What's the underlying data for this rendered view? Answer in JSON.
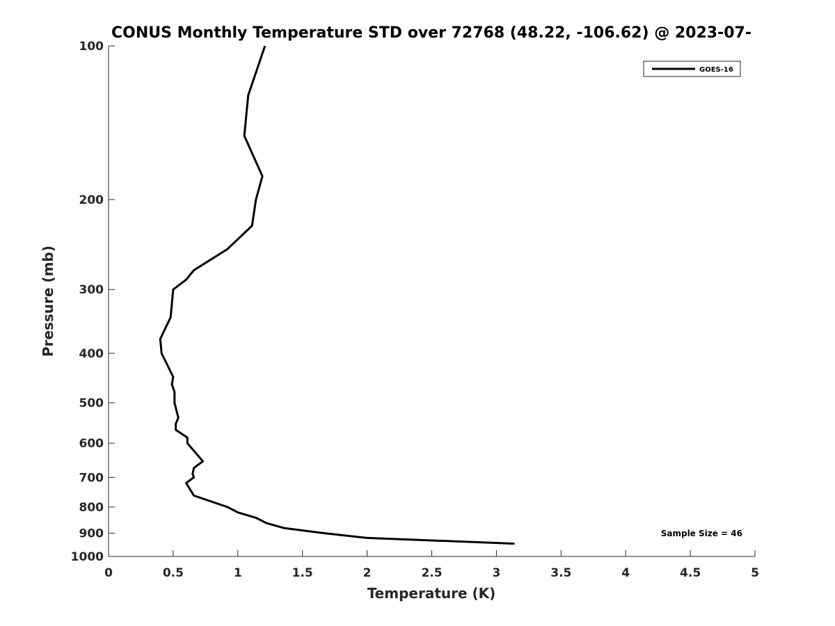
{
  "chart_data": {
    "type": "line",
    "title": "CONUS Monthly Temperature STD over 72768 (48.22, -106.62) @ 2023-07-",
    "xlabel": "Temperature (K)",
    "ylabel": "Pressure (mb)",
    "xlim": [
      0,
      5
    ],
    "ylim": [
      100,
      1000
    ],
    "y_scale": "log",
    "y_reversed": true,
    "grid": false,
    "legend_position": "top-right",
    "x_ticks": [
      0,
      0.5,
      1,
      1.5,
      2,
      2.5,
      3,
      3.5,
      4,
      4.5,
      5
    ],
    "x_tick_labels": [
      "0",
      "0.5",
      "1",
      "1.5",
      "2",
      "2.5",
      "3",
      "3.5",
      "4",
      "4.5",
      "5"
    ],
    "y_ticks": [
      100,
      200,
      300,
      400,
      500,
      600,
      700,
      800,
      900,
      1000
    ],
    "y_tick_labels": [
      "100",
      "200",
      "300",
      "400",
      "500",
      "600",
      "700",
      "800",
      "900",
      "1000"
    ],
    "series": [
      {
        "name": "GOES-16",
        "color": "#000000",
        "points": [
          {
            "x": 1.21,
            "p": 100
          },
          {
            "x": 1.08,
            "p": 125
          },
          {
            "x": 1.05,
            "p": 150
          },
          {
            "x": 1.19,
            "p": 180
          },
          {
            "x": 1.14,
            "p": 200
          },
          {
            "x": 1.11,
            "p": 225
          },
          {
            "x": 0.92,
            "p": 250
          },
          {
            "x": 0.66,
            "p": 275
          },
          {
            "x": 0.6,
            "p": 287
          },
          {
            "x": 0.5,
            "p": 300
          },
          {
            "x": 0.48,
            "p": 340
          },
          {
            "x": 0.4,
            "p": 375
          },
          {
            "x": 0.41,
            "p": 400
          },
          {
            "x": 0.5,
            "p": 445
          },
          {
            "x": 0.49,
            "p": 460
          },
          {
            "x": 0.51,
            "p": 476
          },
          {
            "x": 0.51,
            "p": 500
          },
          {
            "x": 0.54,
            "p": 535
          },
          {
            "x": 0.52,
            "p": 550
          },
          {
            "x": 0.52,
            "p": 565
          },
          {
            "x": 0.61,
            "p": 585
          },
          {
            "x": 0.61,
            "p": 600
          },
          {
            "x": 0.73,
            "p": 651
          },
          {
            "x": 0.66,
            "p": 671
          },
          {
            "x": 0.65,
            "p": 690
          },
          {
            "x": 0.66,
            "p": 700
          },
          {
            "x": 0.6,
            "p": 718
          },
          {
            "x": 0.66,
            "p": 760
          },
          {
            "x": 0.92,
            "p": 800
          },
          {
            "x": 1.0,
            "p": 820
          },
          {
            "x": 1.14,
            "p": 840
          },
          {
            "x": 1.22,
            "p": 860
          },
          {
            "x": 1.36,
            "p": 880
          },
          {
            "x": 1.66,
            "p": 900
          },
          {
            "x": 2.0,
            "p": 920
          },
          {
            "x": 3.14,
            "p": 944
          }
        ]
      }
    ],
    "annotation": "Sample Size = 46"
  }
}
